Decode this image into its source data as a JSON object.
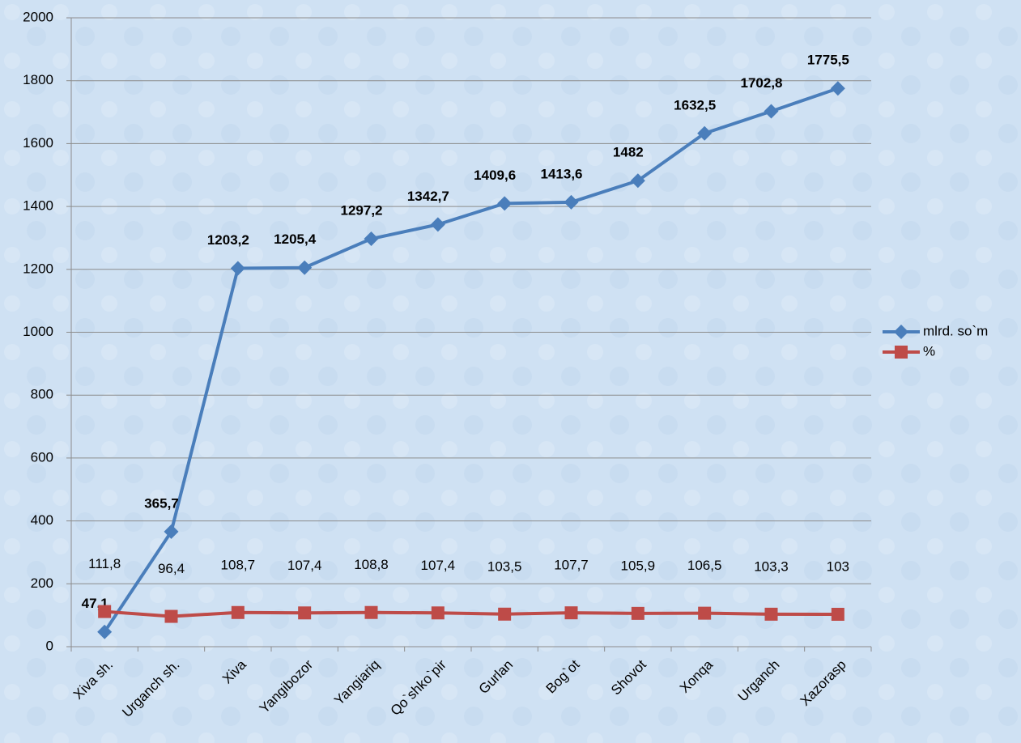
{
  "chart_data": {
    "type": "line",
    "categories": [
      "Xiva sh.",
      "Urganch sh.",
      "Xiva",
      "Yangibozor",
      "Yangiariq",
      "Qo`shko`pir",
      "Gurlan",
      "Bog`ot",
      "Shovot",
      "Xonqa",
      "Urganch",
      "Xazorasp"
    ],
    "series": [
      {
        "name": "mlrd. so`m",
        "color": "#4a7ebb",
        "marker": "diamond",
        "values": [
          47.1,
          365.7,
          1203.2,
          1205.4,
          1297.2,
          1342.7,
          1409.6,
          1413.6,
          1482,
          1632.5,
          1702.8,
          1775.5
        ],
        "value_labels": [
          "47,1",
          "365,7",
          "1203,2",
          "1205,4",
          "1297,2",
          "1342,7",
          "1409,6",
          "1413,6",
          "1482",
          "1632,5",
          "1702,8",
          "1775,5"
        ]
      },
      {
        "name": "%",
        "color": "#be4b48",
        "marker": "square",
        "values": [
          111.8,
          96.4,
          108.7,
          107.4,
          108.8,
          107.4,
          103.5,
          107.7,
          105.9,
          106.5,
          103.3,
          103
        ],
        "value_labels": [
          "111,8",
          "96,4",
          "108,7",
          "107,4",
          "108,8",
          "107,4",
          "103,5",
          "107,7",
          "105,9",
          "106,5",
          "103,3",
          "103"
        ]
      }
    ],
    "ylim": [
      0,
      2000
    ],
    "yticks": [
      0,
      200,
      400,
      600,
      800,
      1000,
      1200,
      1400,
      1600,
      1800,
      2000
    ],
    "grid": true,
    "legend": "right"
  }
}
